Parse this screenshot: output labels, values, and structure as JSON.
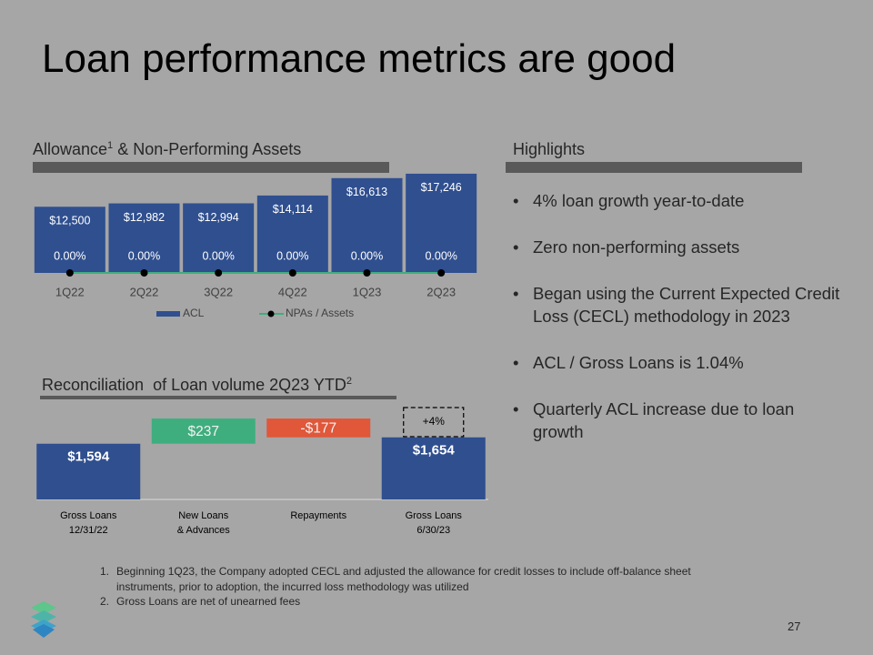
{
  "title": "Loan performance metrics are good",
  "chart_data": [
    {
      "type": "bar",
      "title": "Allowance",
      "title_sup": "1",
      "title_rest": "& Non-Performing Assets",
      "categories": [
        "1Q22",
        "2Q22",
        "3Q22",
        "4Q22",
        "1Q23",
        "2Q23"
      ],
      "series": [
        {
          "name": "ACL",
          "color": "#2f4f8f",
          "values": [
            12500,
            12982,
            12994,
            14114,
            16613,
            17246
          ],
          "value_labels": [
            "$12,500",
            "$12,982",
            "$12,994",
            "$14,114",
            "$16,613",
            "$17,246"
          ]
        },
        {
          "name": "NPAs / Assets",
          "color": "#3fae7e",
          "values": [
            0,
            0,
            0,
            0,
            0,
            0
          ],
          "value_labels": [
            "0.00%",
            "0.00%",
            "0.00%",
            "0.00%",
            "0.00%",
            "0.00%"
          ],
          "axis": "y2"
        }
      ],
      "ylim": [
        3000,
        17500
      ],
      "y2lim": [
        0,
        1
      ]
    },
    {
      "type": "waterfall",
      "title": "Reconciliation  of Loan volume 2Q23 YTD",
      "title_sup": "2",
      "categories": [
        [
          "Gross Loans",
          "12/31/22"
        ],
        [
          "New Loans",
          "& Advances"
        ],
        [
          "Repayments"
        ],
        [
          "Gross Loans",
          "6/30/23"
        ]
      ],
      "values": [
        1594,
        237,
        -177,
        1654
      ],
      "value_labels": [
        "$1,594",
        "$237",
        "-$177",
        "$1,654"
      ],
      "colors": [
        "#2f4f8f",
        "#3fae7e",
        "#e0573a",
        "#2f4f8f"
      ],
      "annotation": "+4%",
      "ylim": [
        1070,
        1900
      ]
    }
  ],
  "highlights": {
    "title": "Highlights",
    "items": [
      "4% loan growth year-to-date",
      "Zero non-performing assets",
      "Began using the Current Expected Credit Loss (CECL) methodology in 2023",
      "ACL / Gross Loans is 1.04%",
      "Quarterly ACL increase due to loan growth"
    ]
  },
  "footnotes": [
    {
      "number": "1.",
      "text": "Beginning 1Q23, the Company adopted CECL and adjusted the allowance for credit losses to include off-balance sheet instruments, prior to adoption, the incurred loss methodology was utilized"
    },
    {
      "number": "2.",
      "text": "Gross Loans are net of unearned fees"
    }
  ],
  "page_number": "27"
}
